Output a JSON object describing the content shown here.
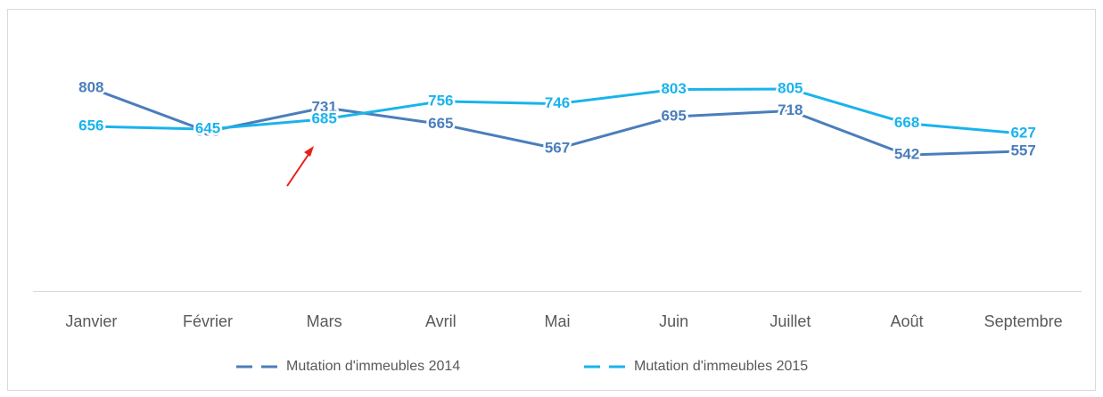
{
  "chart_data": {
    "type": "line",
    "categories": [
      "Janvier",
      "Février",
      "Mars",
      "Avril",
      "Mai",
      "Juin",
      "Juillet",
      "Août",
      "Septembre"
    ],
    "series": [
      {
        "name": "Mutation d'immeubles  2014",
        "color": "#4a7ebb",
        "values": [
          808,
          635,
          731,
          665,
          567,
          695,
          718,
          542,
          557
        ]
      },
      {
        "name": "Mutation d'immeubles 2015",
        "color": "#1ab3ec",
        "values": [
          656,
          645,
          685,
          756,
          746,
          803,
          805,
          668,
          627
        ]
      }
    ],
    "ylim": [
      0,
      1000
    ]
  }
}
